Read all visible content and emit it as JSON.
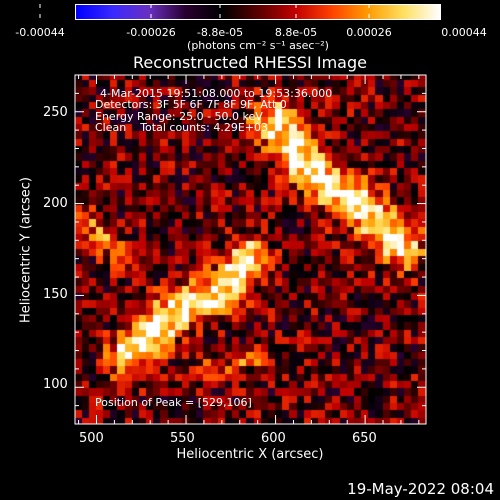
{
  "colorbar": {
    "tick_labels": [
      "-0.00044",
      "-0.00026",
      "-8.8e-05",
      "8.8e-05",
      "0.00026",
      "0.00044"
    ],
    "unit_label": "(photons cm⁻² s⁻¹ asec⁻²)",
    "colormap": [
      "#0000ff",
      "#3b2aff",
      "#6a30c0",
      "#2a0030",
      "#000000",
      "#5a0000",
      "#c00000",
      "#ff4000",
      "#ff9a00",
      "#ffe060",
      "#ffffff"
    ]
  },
  "chart_data": {
    "type": "heatmap",
    "title": "Reconstructed RHESSI Image",
    "xlabel": "Heliocentric X (arcsec)",
    "ylabel": "Heliocentric Y (arcsec)",
    "xlim": [
      488,
      684
    ],
    "ylim": [
      80,
      270
    ],
    "x_ticks": [
      500,
      550,
      600,
      650
    ],
    "y_ticks": [
      100,
      150,
      200,
      250
    ],
    "value_range": [
      -0.00044,
      0.00044
    ],
    "info_lines": [
      "4-Mar-2015 19:51:08.000 to 19:53:36.000",
      "Detectors: 3F 5F 6F 7F 8F 9F, Att 0",
      "Energy Range: 25.0 - 50.0 keV",
      "Clean    Total counts: 4.29E+03"
    ],
    "peak_label": "Position of Peak = [529,106]",
    "emission_ridges": [
      {
        "points": [
          [
            518,
            118
          ],
          [
            530,
            128
          ],
          [
            545,
            143
          ],
          [
            560,
            148
          ],
          [
            575,
            158
          ],
          [
            585,
            170
          ]
        ],
        "width_arcsec": 16,
        "peak": 0.00044
      },
      {
        "points": [
          [
            600,
            245
          ],
          [
            612,
            228
          ],
          [
            625,
            215
          ],
          [
            640,
            205
          ],
          [
            655,
            192
          ],
          [
            670,
            178
          ]
        ],
        "width_arcsec": 18,
        "peak": 0.00042
      },
      {
        "points": [
          [
            495,
            190
          ],
          [
            505,
            182
          ],
          [
            512,
            172
          ]
        ],
        "width_arcsec": 10,
        "peak": 0.00022
      },
      {
        "points": [
          [
            560,
            110
          ],
          [
            575,
            112
          ],
          [
            590,
            116
          ]
        ],
        "width_arcsec": 8,
        "peak": 0.00018
      }
    ]
  },
  "footer": {
    "date": "19-May-2022 08:04"
  }
}
